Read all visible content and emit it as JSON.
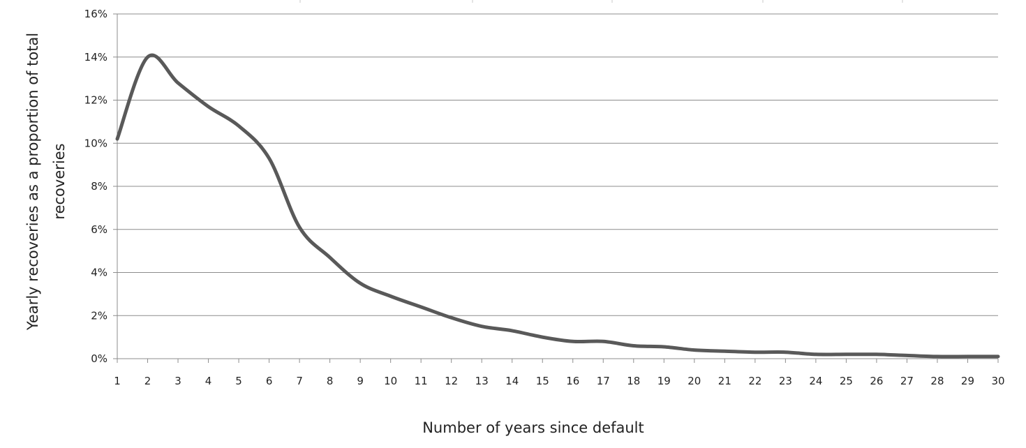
{
  "chart_data": {
    "type": "line",
    "title": "",
    "xlabel": "Number of years since default",
    "ylabel": "Yearly recoveries as a proportion of total recoveries",
    "ylabel_lines": [
      "Yearly recoveries as a proportion of total",
      "recoveries"
    ],
    "x": [
      1,
      2,
      3,
      4,
      5,
      6,
      7,
      8,
      9,
      10,
      11,
      12,
      13,
      14,
      15,
      16,
      17,
      18,
      19,
      20,
      21,
      22,
      23,
      24,
      25,
      26,
      27,
      28,
      29,
      30
    ],
    "x_tick_labels": [
      "1",
      "2",
      "3",
      "4",
      "5",
      "6",
      "7",
      "8",
      "9",
      "10",
      "11",
      "12",
      "13",
      "14",
      "15",
      "16",
      "17",
      "18",
      "19",
      "20",
      "21",
      "22",
      "23",
      "24",
      "25",
      "26",
      "27",
      "28",
      "29",
      "30"
    ],
    "series": [
      {
        "values": [
          10.2,
          14.0,
          12.8,
          11.7,
          10.8,
          9.3,
          6.1,
          4.7,
          3.5,
          2.9,
          2.4,
          1.9,
          1.5,
          1.3,
          1.0,
          0.8,
          0.8,
          0.6,
          0.55,
          0.4,
          0.35,
          0.3,
          0.3,
          0.2,
          0.2,
          0.2,
          0.15,
          0.1,
          0.1,
          0.1
        ],
        "color": "#595959"
      }
    ],
    "ylim": [
      0,
      16
    ],
    "y_ticks": [
      0,
      2,
      4,
      6,
      8,
      10,
      12,
      14,
      16
    ],
    "y_tick_labels": [
      "0%",
      "2%",
      "4%",
      "6%",
      "8%",
      "10%",
      "12%",
      "14%",
      "16%"
    ],
    "grid": true,
    "legend": "none"
  }
}
